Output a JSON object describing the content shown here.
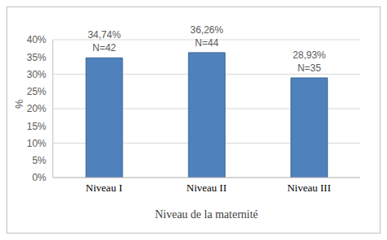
{
  "chart_data": {
    "type": "bar",
    "categories": [
      "Niveau I",
      "Niveau II",
      "Niveau III"
    ],
    "values": [
      34.74,
      36.26,
      28.93
    ],
    "value_labels": [
      "34,74%",
      "36,26%",
      "28,93%"
    ],
    "n_labels": [
      "N=42",
      "N=44",
      "N=35"
    ],
    "color": "#4f81bd",
    "x_label": "Niveau de la maternité",
    "y_label": "%",
    "ylim": [
      0,
      40
    ],
    "yticks": [
      {
        "value": 0,
        "label": "0%"
      },
      {
        "value": 5,
        "label": "5%"
      },
      {
        "value": 10,
        "label": "10%"
      },
      {
        "value": 15,
        "label": "15%"
      },
      {
        "value": 20,
        "label": "20%"
      },
      {
        "value": 25,
        "label": "25%"
      },
      {
        "value": 30,
        "label": "30%"
      },
      {
        "value": 35,
        "label": "35%"
      },
      {
        "value": 40,
        "label": "40%"
      }
    ],
    "grid": true,
    "data_labels": true
  }
}
